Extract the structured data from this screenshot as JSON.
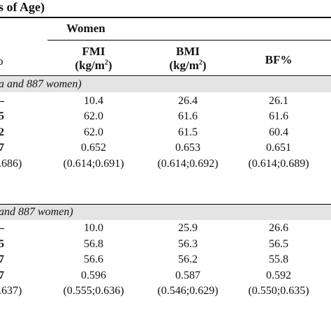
{
  "table": {
    "title": "s of Age)",
    "group_header": "Women",
    "columns": [
      {
        "label": "FMI",
        "unit": "(kg/m",
        "unit_sup": "2",
        "unit_end": ")"
      },
      {
        "label": "BMI",
        "unit": "(kg/m",
        "unit_sup": "2",
        "unit_end": ")"
      },
      {
        "label": "BF%",
        "unit": "",
        "unit_sup": "",
        "unit_end": ""
      }
    ],
    "left_col_header": "o",
    "sections": [
      {
        "label": "a and 887 women)",
        "rows": [
          {
            "left": "–",
            "values": [
              "10.4",
              "26.4",
              "26.1"
            ]
          },
          {
            "left": "5",
            "values": [
              "62.0",
              "61.6",
              "61.6"
            ]
          },
          {
            "left": "2",
            "values": [
              "62.0",
              "61.5",
              "60.4"
            ]
          },
          {
            "left": "7",
            "values": [
              "0.652",
              "0.653",
              "0.651"
            ]
          },
          {
            "left": ".686)",
            "values": [
              "(0.614;0.691)",
              "(0.614;0.692)",
              "(0.614;0.689)"
            ]
          }
        ]
      },
      {
        "label": "and 887 women)",
        "rows": [
          {
            "left": "–",
            "values": [
              "10.0",
              "25.9",
              "26.6"
            ]
          },
          {
            "left": "5",
            "values": [
              "56.8",
              "56.3",
              "56.5"
            ]
          },
          {
            "left": "7",
            "values": [
              "56.6",
              "56.2",
              "55.8"
            ]
          },
          {
            "left": "7",
            "values": [
              "0.596",
              "0.587",
              "0.592"
            ]
          },
          {
            "left": ".637)",
            "values": [
              "(0.555;0.636)",
              "(0.546;0.629)",
              "(0.550;0.635)"
            ]
          }
        ]
      }
    ]
  }
}
